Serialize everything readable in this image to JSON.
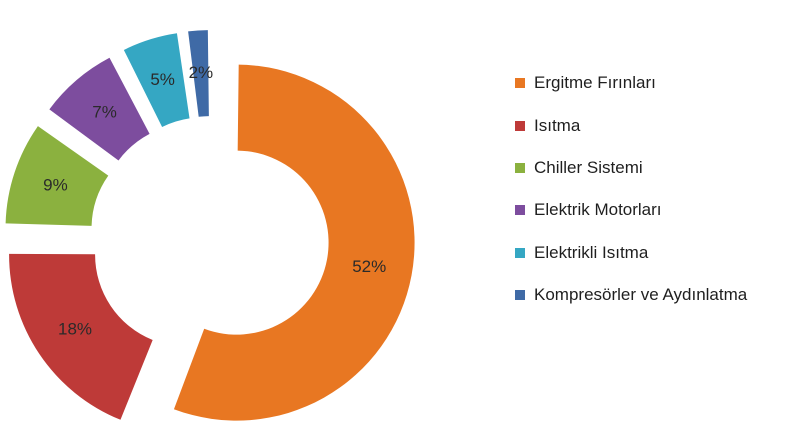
{
  "chart_data": {
    "type": "pie",
    "variant": "exploded-doughnut",
    "title": "",
    "categories": [
      "Ergitme Fırınları",
      "Isıtma",
      "Chiller Sistemi",
      "Elektrik Motorları",
      "Elektrikli Isıtma",
      "Kompresörler ve Aydınlatma"
    ],
    "values": [
      52,
      18,
      9,
      7,
      5,
      2
    ],
    "data_labels": [
      "52%",
      "18%",
      "9%",
      "7%",
      "5%",
      "2%"
    ],
    "colors": [
      "#e87722",
      "#be3a38",
      "#8bb13f",
      "#7d4d9e",
      "#35a7c3",
      "#3f6aa6"
    ],
    "legend_position": "right"
  }
}
